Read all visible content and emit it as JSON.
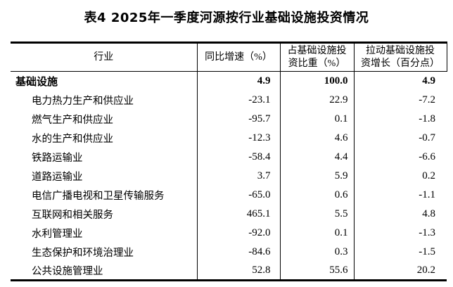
{
  "title": "表4 2025年一季度河源按行业基础设施投资情况",
  "colors": {
    "text": "#000000",
    "background": "#ffffff",
    "border": "#000000"
  },
  "table": {
    "columns": [
      {
        "label": "行业"
      },
      {
        "label": "同比增速（%）"
      },
      {
        "label_line1": "占基础设施投",
        "label_line2": "资比重（%）"
      },
      {
        "label_line1": "拉动基础设施投",
        "label_line2": "资增长（百分点）"
      }
    ],
    "rows": [
      {
        "industry": "基础设施",
        "growth": "4.9",
        "share": "100.0",
        "pull": "4.9"
      },
      {
        "industry": "电力热力生产和供应业",
        "growth": "-23.1",
        "share": "22.9",
        "pull": "-7.2"
      },
      {
        "industry": "燃气生产和供应业",
        "growth": "-95.7",
        "share": "0.1",
        "pull": "-1.8"
      },
      {
        "industry": "水的生产和供应业",
        "growth": "-12.3",
        "share": "4.6",
        "pull": "-0.7"
      },
      {
        "industry": "铁路运输业",
        "growth": "-58.4",
        "share": "4.4",
        "pull": "-6.6"
      },
      {
        "industry": "道路运输业",
        "growth": "3.7",
        "share": "5.9",
        "pull": "0.2"
      },
      {
        "industry": "电信广播电视和卫星传输服务",
        "growth": "-65.0",
        "share": "0.6",
        "pull": "-1.1"
      },
      {
        "industry": "互联网和相关服务",
        "growth": "465.1",
        "share": "5.5",
        "pull": "4.8"
      },
      {
        "industry": "水利管理业",
        "growth": "-92.0",
        "share": "0.1",
        "pull": "-1.3"
      },
      {
        "industry": "生态保护和环境治理业",
        "growth": "-84.6",
        "share": "0.3",
        "pull": "-1.5"
      },
      {
        "industry": "公共设施管理业",
        "growth": "52.8",
        "share": "55.6",
        "pull": "20.2"
      }
    ]
  }
}
